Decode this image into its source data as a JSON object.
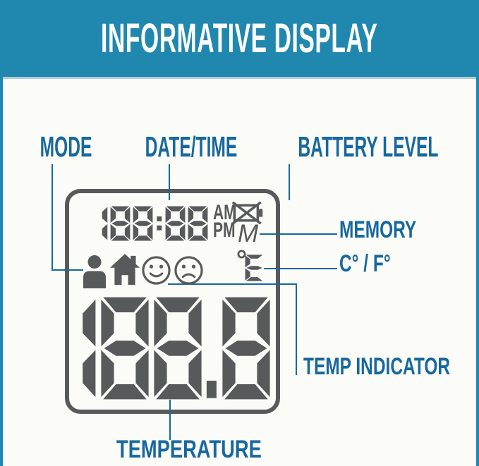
{
  "banner": {
    "title": "INFORMATIVE DISPLAY"
  },
  "colors": {
    "banner_teal": "#2088ae",
    "label_blue": "#17689e",
    "display_gray": "#58595b",
    "background": "#fbfbf8",
    "title_white": "#ffffff"
  },
  "labels": {
    "mode": "MODE",
    "date_time": "DATE/TIME",
    "battery_level": "BATTERY LEVEL",
    "memory": "MEMORY",
    "celsius_fahrenheit": "C° / F°",
    "temp_indicator": "TEMP INDICATOR",
    "temperature": "TEMPERATURE"
  },
  "display": {
    "time": "188:88",
    "meridiem_am": "AM",
    "meridiem_pm": "PM",
    "memory_marker": "M",
    "temp_unit": "°E",
    "temperature_value": "188.8",
    "icons": [
      "crossed-battery-icon",
      "person-icon",
      "home-icon",
      "happy-face-icon",
      "sad-face-icon",
      "degree-icon"
    ]
  }
}
